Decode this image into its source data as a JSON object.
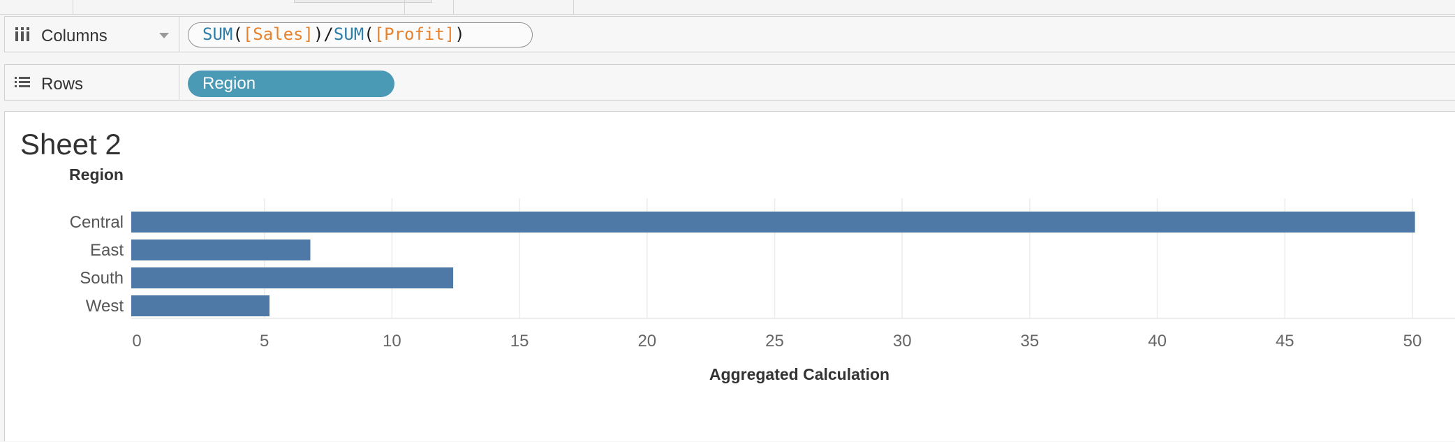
{
  "shelves": {
    "columns": {
      "label": "Columns",
      "icon": "columns-icon",
      "pill_tokens": [
        {
          "text": "SUM",
          "kind": "fn"
        },
        {
          "text": "(",
          "kind": "op"
        },
        {
          "text": "[Sales]",
          "kind": "field"
        },
        {
          "text": ")/",
          "kind": "op"
        },
        {
          "text": "SUM",
          "kind": "fn"
        },
        {
          "text": "(",
          "kind": "op"
        },
        {
          "text": "[Profit]",
          "kind": "field"
        },
        {
          "text": ")",
          "kind": "op"
        }
      ]
    },
    "rows": {
      "label": "Rows",
      "icon": "rows-list-icon",
      "pill": "Region"
    }
  },
  "sheet": {
    "title": "Sheet 2"
  },
  "colors": {
    "bar": "#4e79a7",
    "region_pill": "#4a9ab5",
    "function_token": "#2f7fa8",
    "field_token": "#e9822d"
  },
  "chart_data": {
    "type": "bar",
    "orientation": "horizontal",
    "row_header": "Region",
    "categories": [
      "Central",
      "East",
      "South",
      "West"
    ],
    "values": [
      50.1,
      6.8,
      12.4,
      5.2
    ],
    "xlabel": "Aggregated Calculation",
    "xlim": [
      0,
      52
    ],
    "x_ticks": [
      0,
      5,
      10,
      15,
      20,
      25,
      30,
      35,
      40,
      45,
      50
    ],
    "grid": true
  }
}
